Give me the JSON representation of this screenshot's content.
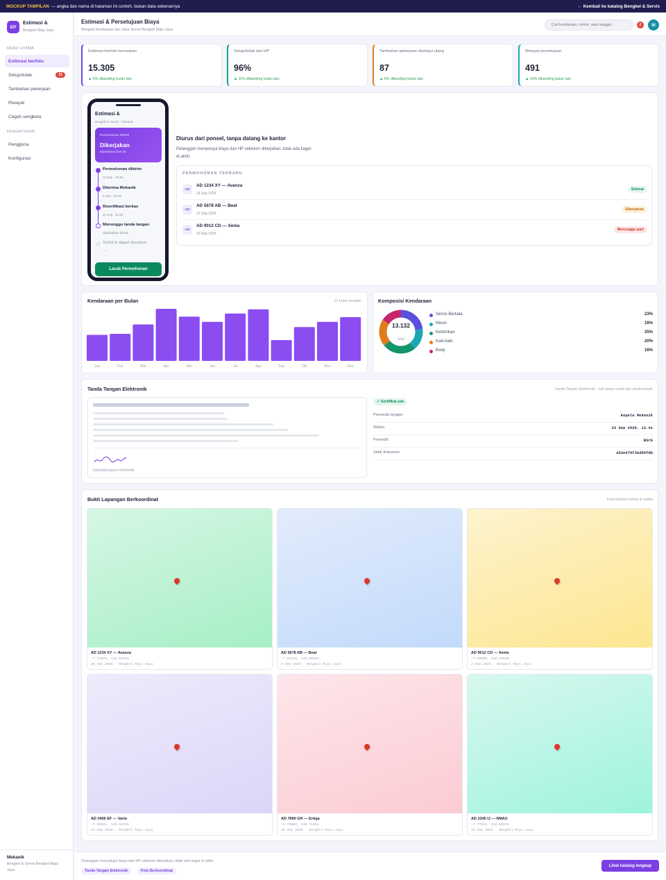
{
  "banner": {
    "tag": "MOCKUP TAMPILAN",
    "text": "— angka dan nama di halaman ini contoh, bukan data sebenarnya",
    "back_link": "← Kembali ke katalog Bengkel & Servis"
  },
  "sidebar": {
    "logo": "EP",
    "brand": "Estimasi &",
    "brand_sub": "Bengkel Maju Jaya",
    "section_main": "MENU UTAMA",
    "items": [
      {
        "label": "Estimasi berfoto"
      },
      {
        "label": "Setuju/tolak",
        "badge": "21"
      },
      {
        "label": "Tambahan pekerjaan"
      },
      {
        "label": "Riwayat"
      },
      {
        "label": "Cegah sengketa"
      }
    ],
    "section_settings": "PENGATURAN",
    "settings_items": [
      {
        "label": "Pengguna"
      },
      {
        "label": "Konfigurasi"
      }
    ],
    "user_name": "Mekanik",
    "user_org": "Bengkel & Servis Bengkel Maju Jaya"
  },
  "header": {
    "title": "Estimasi & Persetujuan Biaya",
    "subtitle": "Bengkel Kendaraan dan Jasa Servis Bengkel Maju Jaya",
    "search_placeholder": "Cari kendaraan, nomor, atau tanggal...",
    "notif_count": "2",
    "avatar": "M"
  },
  "kpis": [
    {
      "label": "Estimasi berfoto kerusakan",
      "value": "15.305",
      "delta": "▲ 6% dibanding bulan lalu",
      "color": "#5b4fe0"
    },
    {
      "label": "Setuju/tolak dari HP",
      "value": "96%",
      "delta": "▲ 11% dibanding bulan lalu",
      "color": "#17a085"
    },
    {
      "label": "Tambahan pekerjaan disetujui ulang",
      "value": "87",
      "delta": "▲ 9% dibanding bulan lalu",
      "color": "#e07d1a"
    },
    {
      "label": "Riwayat persetujuan",
      "value": "491",
      "delta": "▲ 10% dibanding bulan lalu",
      "color": "#1ba6b6"
    }
  ],
  "phone": {
    "title": "Estimasi &",
    "subtitle": "Bengkel & Servis · Mekanik",
    "request_no": "Permohonan #8252",
    "status": "Dikerjakan",
    "status_note": "Diperbarui hari ini",
    "timeline": [
      {
        "title": "Permohonan dikirim",
        "time": "12 Sep · 09.25"
      },
      {
        "title": "Diterima Mekanik",
        "time": "9 Sep · 08.05"
      },
      {
        "title": "Diverifikasi berkas",
        "time": "21 Sep · 11.58"
      },
      {
        "title": "Menunggu tanda tangan",
        "time": "dijadwalkan besok"
      },
      {
        "title": "Terbit & dapat diunduh",
        "time": "—"
      }
    ],
    "button": "Lacak Permohonan"
  },
  "requests": {
    "title": "Diurus dari ponsel, tanpa datang ke kantor",
    "desc": "Pelanggan menyetujui biaya dari HP sebelum dikerjakan, tidak ada kaget di akhir.",
    "heading": "PERMOHONAN TERBARU",
    "rows": [
      {
        "icon": "AD",
        "name": "AD 1234 XY — Avanza",
        "date": "18 Sep 2026",
        "status": "Selesai",
        "fg": "#0b8a5e",
        "bg": "#e3f6ec"
      },
      {
        "icon": "AD",
        "name": "AD 5678 AB — Beat",
        "date": "12 Sep 2026",
        "status": "Dikerjakan",
        "fg": "#c26a0a",
        "bg": "#fdf0dc"
      },
      {
        "icon": "AD",
        "name": "AD 9012 CD — Xenia",
        "date": "20 Sep 2026",
        "status": "Menunggu part",
        "fg": "#d0342b",
        "bg": "#fde6e4"
      }
    ]
  },
  "bar_card": {
    "title": "Kendaraan per Bulan",
    "note": "12 bulan terakhir"
  },
  "donut_card": {
    "title": "Komposisi Kendaraan",
    "total": "13.132",
    "total_label": "total"
  },
  "signature": {
    "title": "Tanda Tangan Elektronik",
    "note": "Tanda Tangan Elektronik · sah tanpa cetak dan tanda basah",
    "caption": "Ditandatangani elektronik",
    "cert_badge": "✓ Sertifikat sah",
    "fields": [
      {
        "key": "Penanda tangan",
        "value": "Kepala Mekanik"
      },
      {
        "key": "Waktu",
        "value": "23 Sep 2026, 13.41"
      },
      {
        "key": "Penerbit",
        "value": "BSrE"
      },
      {
        "key": "Sidik dokumen",
        "value": "a53e476f1bd90fdb"
      }
    ]
  },
  "photos": {
    "title": "Bukti Lapangan Berkoordinat",
    "note": "Foto terkunci lokasi & waktu",
    "items": [
      {
        "name": "AD 1234 XY — Avanza",
        "coords": "-7.17825, 110.81534",
        "meta": "20 Sep 2026 · Bengkel Maju Jaya",
        "c1": "#d6f7e4",
        "c2": "#a6efc5"
      },
      {
        "name": "AD 5678 AB — Beat",
        "coords": "-7.52216, 110.85826",
        "meta": "5 Sep 2026 · Bengkel Maju Jaya",
        "c1": "#e2ecfb",
        "c2": "#c2dafb"
      },
      {
        "name": "AD 9012 CD — Xenia",
        "coords": "-7.50200, 110.25538",
        "meta": "4 Sep 2026 · Bengkel Maju Jaya",
        "c1": "#fdf3cf",
        "c2": "#fde68f"
      },
      {
        "name": "AD 3456 EF — Vario",
        "coords": "-7.56561, 110.63310",
        "meta": "23 Sep 2026 · Bengkel Maju Jaya",
        "c1": "#efeafb",
        "c2": "#dcd5f8"
      },
      {
        "name": "AD 7890 GH — Ertiga",
        "coords": "-6.79803, 110.71451",
        "meta": "20 Sep 2026 · Bengkel Maju Jaya",
        "c1": "#fde6ea",
        "c2": "#fccbd3"
      },
      {
        "name": "AD 2345 IJ — NMAX",
        "coords": "-7.77044, 110.68575",
        "meta": "23 Sep 2026 · Bengkel Maju Jaya",
        "c1": "#d8f8ef",
        "c2": "#9ef3dc"
      }
    ]
  },
  "footer": {
    "text": "Pelanggan menyetujui biaya dari HP sebelum dikerjakan, tidak ada kaget di akhir.",
    "chips": [
      "Tanda Tangan Elektronik",
      "Foto Berkoordinat"
    ],
    "button": "Lihat katalog lengkap"
  },
  "chart_data": [
    {
      "type": "bar",
      "categories": [
        "Jan",
        "Feb",
        "Mar",
        "Apr",
        "Mei",
        "Jun",
        "Jul",
        "Agu",
        "Sep",
        "Okt",
        "Nov",
        "Des"
      ],
      "values": [
        50,
        52,
        70,
        100,
        85,
        75,
        91,
        99,
        40,
        65,
        75,
        84
      ],
      "ylim": [
        0,
        100
      ],
      "color": "#8b4cf0"
    },
    {
      "type": "pie",
      "categories": [
        "Servis Berkala",
        "Mesin",
        "Kelistrikan",
        "Kaki-kaki",
        "Body"
      ],
      "values": [
        23,
        16,
        25,
        20,
        16
      ],
      "labels": [
        "23%",
        "16%",
        "25%",
        "20%",
        "16%"
      ],
      "colors": [
        "#5b4fe0",
        "#1ba6b6",
        "#14956a",
        "#e07d1a",
        "#c8246d"
      ]
    }
  ]
}
